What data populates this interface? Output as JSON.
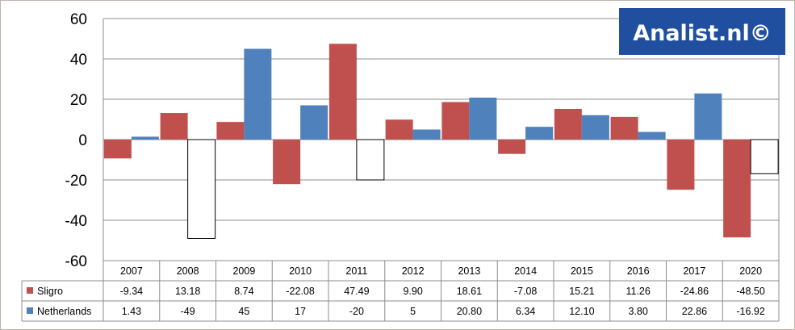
{
  "logo": {
    "text": "Analist.nl©",
    "bg_color": "#1f4f9e",
    "text_color": "#ffffff"
  },
  "chart_data": {
    "type": "bar",
    "categories": [
      "2007",
      "2008",
      "2009",
      "2010",
      "2011",
      "2012",
      "2013",
      "2014",
      "2015",
      "2016",
      "2017",
      "2020"
    ],
    "ylim": [
      -60,
      60
    ],
    "yticks": [
      60,
      40,
      20,
      0,
      -20,
      -40,
      -60
    ],
    "grid": true,
    "series": [
      {
        "name": "Sligro",
        "color": "#c0504d",
        "values": [
          -9.34,
          13.18,
          8.74,
          -22.08,
          47.49,
          9.9,
          18.61,
          -7.08,
          15.21,
          11.26,
          -24.86,
          -48.5
        ],
        "labels": [
          "-9.34",
          "13.18",
          "8.74",
          "-22.08",
          "47.49",
          "9.90",
          "18.61",
          "-7.08",
          "15.21",
          "11.26",
          "-24.86",
          "-48.50"
        ]
      },
      {
        "name": "Netherlands",
        "color": "#4f81bd",
        "negative_fill": "#ffffff",
        "values": [
          1.43,
          -49,
          45,
          17,
          -20,
          5,
          20.8,
          6.34,
          12.1,
          3.8,
          22.86,
          -16.92
        ],
        "labels": [
          "1.43",
          "-49",
          "45",
          "17",
          "-20",
          "5",
          "20.80",
          "6.34",
          "12.10",
          "3.80",
          "22.86",
          "-16.92"
        ]
      }
    ],
    "legend": "data-table"
  }
}
